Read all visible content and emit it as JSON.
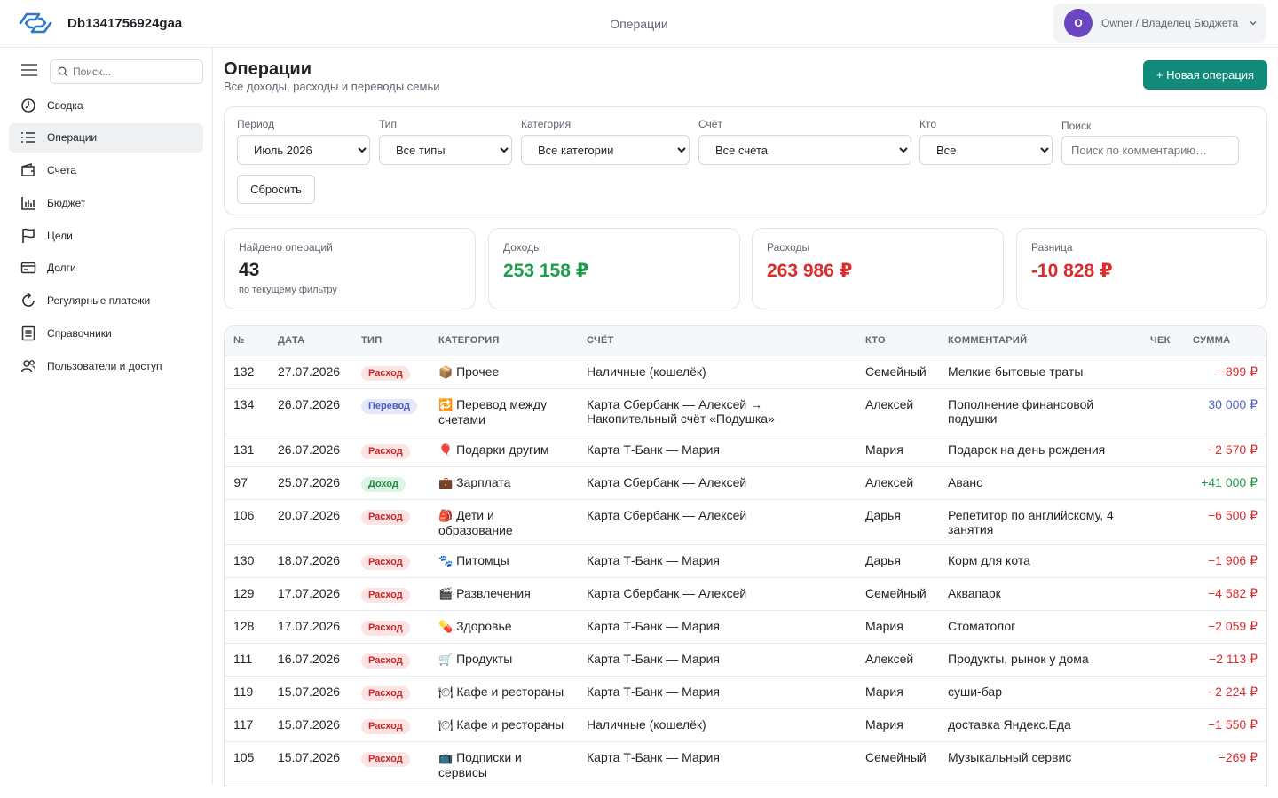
{
  "app": {
    "title": "Db1341756924gaa",
    "section": "Операции"
  },
  "user": {
    "initial": "O",
    "name": "Owner / Владелец Бюджета"
  },
  "sidebar": {
    "search_placeholder": "Поиск...",
    "items": [
      {
        "label": "Сводка",
        "icon": "clock-icon"
      },
      {
        "label": "Операции",
        "icon": "list-icon",
        "active": true
      },
      {
        "label": "Счета",
        "icon": "wallet-icon"
      },
      {
        "label": "Бюджет",
        "icon": "bar-chart-icon"
      },
      {
        "label": "Цели",
        "icon": "flag-icon"
      },
      {
        "label": "Долги",
        "icon": "card-icon"
      },
      {
        "label": "Регулярные платежи",
        "icon": "refresh-icon"
      },
      {
        "label": "Справочники",
        "icon": "book-icon"
      },
      {
        "label": "Пользователи и доступ",
        "icon": "users-icon"
      }
    ]
  },
  "page": {
    "title": "Операции",
    "subtitle": "Все доходы, расходы и переводы семьи",
    "new_button": "+ Новая операция"
  },
  "filters": {
    "period_label": "Период",
    "period_value": "Июль 2026",
    "type_label": "Тип",
    "type_value": "Все типы",
    "category_label": "Категория",
    "category_value": "Все категории",
    "account_label": "Счёт",
    "account_value": "Все счета",
    "who_label": "Кто",
    "who_value": "Все",
    "search_label": "Поиск",
    "search_placeholder": "Поиск по комментарию…",
    "reset_label": "Сбросить"
  },
  "stats": {
    "found_label": "Найдено операций",
    "found_value": "43",
    "found_note": "по текущему фильтру",
    "income_label": "Доходы",
    "income_value": "253 158 ₽",
    "expense_label": "Расходы",
    "expense_value": "263 986 ₽",
    "diff_label": "Разница",
    "diff_value": "-10 828 ₽"
  },
  "colors": {
    "accent": "#128a7a",
    "income": "#1f9d4c",
    "expense": "#d92d2d",
    "transfer": "#5363c9"
  },
  "table": {
    "headers": [
      "№",
      "ДАТА",
      "ТИП",
      "КАТЕГОРИЯ",
      "СЧЁТ",
      "КТО",
      "КОММЕНТАРИЙ",
      "ЧЕК",
      "СУММА"
    ],
    "rows": [
      {
        "id": "132",
        "date": "27.07.2026",
        "type": "Расход",
        "kind": "expense",
        "icon": "📦",
        "category": "Прочее",
        "account": "Наличные (кошелёк)",
        "who": "Семейный",
        "comment": "Мелкие бытовые траты",
        "amount": "−899 ₽"
      },
      {
        "id": "134",
        "date": "26.07.2026",
        "type": "Перевод",
        "kind": "transfer",
        "icon": "🔁",
        "category": "Перевод между счетами",
        "account": "Карта Сбербанк — Алексей → Накопительный счёт «Подушка»",
        "who": "Алексей",
        "comment": "Пополнение финансовой подушки",
        "amount": "30 000 ₽"
      },
      {
        "id": "131",
        "date": "26.07.2026",
        "type": "Расход",
        "kind": "expense",
        "icon": "🎈",
        "category": "Подарки другим",
        "account": "Карта Т-Банк — Мария",
        "who": "Мария",
        "comment": "Подарок на день рождения",
        "amount": "−2 570 ₽"
      },
      {
        "id": "97",
        "date": "25.07.2026",
        "type": "Доход",
        "kind": "income",
        "icon": "💼",
        "category": "Зарплата",
        "account": "Карта Сбербанк — Алексей",
        "who": "Алексей",
        "comment": "Аванс",
        "amount": "+41 000 ₽"
      },
      {
        "id": "106",
        "date": "20.07.2026",
        "type": "Расход",
        "kind": "expense",
        "icon": "🎒",
        "category": "Дети и образование",
        "account": "Карта Сбербанк — Алексей",
        "who": "Дарья",
        "comment": "Репетитор по английскому, 4 занятия",
        "amount": "−6 500 ₽"
      },
      {
        "id": "130",
        "date": "18.07.2026",
        "type": "Расход",
        "kind": "expense",
        "icon": "🐾",
        "category": "Питомцы",
        "account": "Карта Т-Банк — Мария",
        "who": "Дарья",
        "comment": "Корм для кота",
        "amount": "−1 906 ₽"
      },
      {
        "id": "129",
        "date": "17.07.2026",
        "type": "Расход",
        "kind": "expense",
        "icon": "🎬",
        "category": "Развлечения",
        "account": "Карта Сбербанк — Алексей",
        "who": "Семейный",
        "comment": "Аквапарк",
        "amount": "−4 582 ₽"
      },
      {
        "id": "128",
        "date": "17.07.2026",
        "type": "Расход",
        "kind": "expense",
        "icon": "💊",
        "category": "Здоровье",
        "account": "Карта Т-Банк — Мария",
        "who": "Мария",
        "comment": "Стоматолог",
        "amount": "−2 059 ₽"
      },
      {
        "id": "111",
        "date": "16.07.2026",
        "type": "Расход",
        "kind": "expense",
        "icon": "🛒",
        "category": "Продукты",
        "account": "Карта Т-Банк — Мария",
        "who": "Алексей",
        "comment": "Продукты, рынок у дома",
        "amount": "−2 113 ₽"
      },
      {
        "id": "119",
        "date": "15.07.2026",
        "type": "Расход",
        "kind": "expense",
        "icon": "🍽",
        "category": "Кафе и рестораны",
        "account": "Карта Т-Банк — Мария",
        "who": "Мария",
        "comment": "суши-бар",
        "amount": "−2 224 ₽"
      },
      {
        "id": "117",
        "date": "15.07.2026",
        "type": "Расход",
        "kind": "expense",
        "icon": "🍽",
        "category": "Кафе и рестораны",
        "account": "Наличные (кошелёк)",
        "who": "Мария",
        "comment": "доставка Яндекс.Еда",
        "amount": "−1 550 ₽"
      },
      {
        "id": "105",
        "date": "15.07.2026",
        "type": "Расход",
        "kind": "expense",
        "icon": "📺",
        "category": "Подписки и сервисы",
        "account": "Карта Т-Банк — Мария",
        "who": "Семейный",
        "comment": "Музыкальный сервис",
        "amount": "−269 ₽"
      }
    ]
  }
}
